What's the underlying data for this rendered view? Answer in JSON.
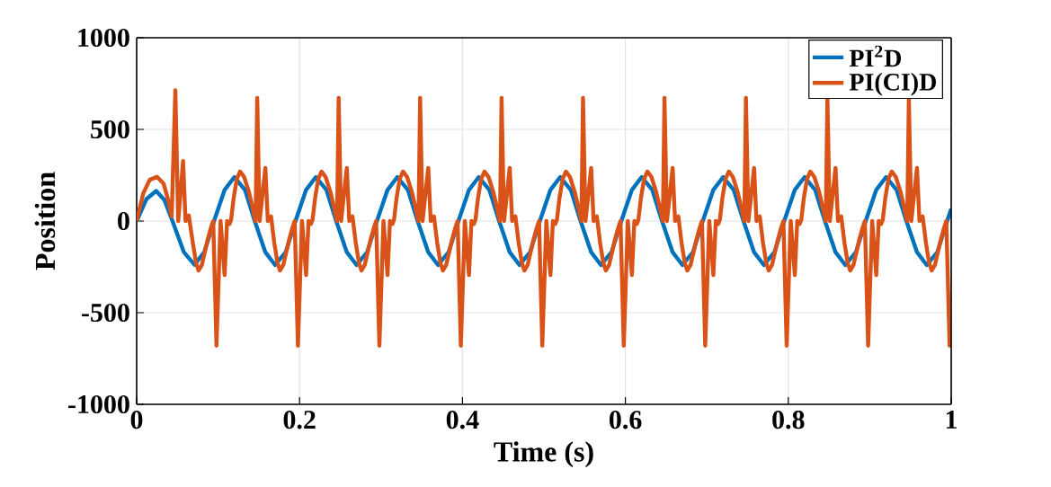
{
  "chart_data": {
    "type": "line",
    "xlabel": "Time (s)",
    "ylabel": "Position",
    "xlim": [
      0,
      1
    ],
    "ylim": [
      -1000,
      1000
    ],
    "xticks": [
      0,
      0.2,
      0.4,
      0.6,
      0.8,
      1
    ],
    "yticks": [
      -1000,
      -500,
      0,
      500,
      1000
    ],
    "grid": true,
    "legend": "top right",
    "series": [
      {
        "name": "PI$^{2}$D",
        "color": "#0072bd",
        "x": [
          0,
          0.012,
          0.024,
          0.034,
          0.044,
          0.058,
          0.071,
          0.083,
          0.095,
          0.108,
          0.12,
          0.133,
          0.145,
          0.158,
          0.17,
          0.183,
          0.195,
          0.208,
          0.22,
          0.233,
          0.245,
          0.258,
          0.27,
          0.283,
          0.295,
          0.308,
          0.32,
          0.333,
          0.345,
          0.358,
          0.37,
          0.383,
          0.395,
          0.408,
          0.42,
          0.433,
          0.445,
          0.458,
          0.47,
          0.483,
          0.495,
          0.508,
          0.52,
          0.533,
          0.545,
          0.558,
          0.57,
          0.583,
          0.595,
          0.608,
          0.62,
          0.633,
          0.645,
          0.658,
          0.67,
          0.683,
          0.695,
          0.708,
          0.72,
          0.733,
          0.745,
          0.758,
          0.77,
          0.783,
          0.795,
          0.808,
          0.82,
          0.833,
          0.845,
          0.858,
          0.87,
          0.883,
          0.895,
          0.908,
          0.92,
          0.933,
          0.945,
          0.958,
          0.97,
          0.983,
          0.995,
          1
        ],
        "values": [
          0,
          120,
          164,
          115,
          0,
          -170,
          -238,
          -170,
          0,
          170,
          240,
          170,
          0,
          -170,
          -240,
          -170,
          0,
          170,
          240,
          170,
          0,
          -170,
          -240,
          -170,
          0,
          170,
          240,
          170,
          0,
          -170,
          -240,
          -170,
          0,
          170,
          240,
          170,
          0,
          -170,
          -240,
          -170,
          0,
          170,
          240,
          170,
          0,
          -170,
          -240,
          -170,
          0,
          170,
          240,
          170,
          0,
          -170,
          -240,
          -170,
          0,
          170,
          240,
          170,
          0,
          -170,
          -240,
          -170,
          0,
          170,
          240,
          170,
          0,
          -170,
          -240,
          -170,
          0,
          170,
          240,
          170,
          0,
          -170,
          -240,
          -170,
          0,
          67
        ]
      },
      {
        "name": "PI(CI)D",
        "color": "#d95319",
        "x": [
          0,
          0.008,
          0.016,
          0.025,
          0.033,
          0.039,
          0.043,
          0.0475,
          0.051,
          0.057,
          0.06,
          0.064,
          0.069,
          0.073,
          0.076,
          0.08,
          0.087,
          0.091,
          0.094,
          0.098,
          0.103,
          0.108,
          0.111,
          0.114,
          0.116,
          0.119,
          0.123,
          0.127,
          0.132,
          0.138,
          0.142,
          0.146,
          0.148,
          0.151,
          0.158,
          0.161,
          0.165,
          0.169,
          0.173,
          0.176,
          0.18,
          0.187,
          0.191,
          0.194,
          0.198,
          0.203,
          0.208,
          0.211,
          0.214,
          0.216,
          0.219,
          0.223,
          0.227,
          0.232,
          0.238,
          0.242,
          0.246,
          0.248,
          0.251,
          0.258,
          0.261,
          0.265,
          0.269,
          0.273,
          0.276,
          0.28,
          0.287,
          0.291,
          0.294,
          0.298,
          0.303,
          0.308,
          0.311,
          0.314,
          0.316,
          0.319,
          0.323,
          0.327,
          0.332,
          0.338,
          0.342,
          0.346,
          0.348,
          0.351,
          0.358,
          0.361,
          0.365,
          0.369,
          0.373,
          0.376,
          0.38,
          0.387,
          0.391,
          0.394,
          0.398,
          0.403,
          0.408,
          0.411,
          0.414,
          0.416,
          0.419,
          0.423,
          0.427,
          0.432,
          0.438,
          0.442,
          0.446,
          0.448,
          0.451,
          0.458,
          0.461,
          0.465,
          0.469,
          0.473,
          0.476,
          0.48,
          0.487,
          0.491,
          0.494,
          0.498,
          0.503,
          0.508,
          0.511,
          0.514,
          0.516,
          0.519,
          0.523,
          0.527,
          0.532,
          0.538,
          0.542,
          0.546,
          0.548,
          0.551,
          0.558,
          0.561,
          0.565,
          0.569,
          0.573,
          0.576,
          0.58,
          0.587,
          0.591,
          0.594,
          0.598,
          0.603,
          0.608,
          0.611,
          0.614,
          0.616,
          0.619,
          0.623,
          0.627,
          0.632,
          0.638,
          0.642,
          0.646,
          0.648,
          0.651,
          0.658,
          0.661,
          0.665,
          0.669,
          0.673,
          0.676,
          0.68,
          0.687,
          0.691,
          0.694,
          0.698,
          0.703,
          0.708,
          0.711,
          0.714,
          0.716,
          0.719,
          0.723,
          0.727,
          0.732,
          0.738,
          0.742,
          0.746,
          0.748,
          0.751,
          0.758,
          0.761,
          0.765,
          0.769,
          0.773,
          0.776,
          0.78,
          0.787,
          0.791,
          0.794,
          0.798,
          0.803,
          0.808,
          0.811,
          0.814,
          0.816,
          0.819,
          0.823,
          0.827,
          0.832,
          0.838,
          0.842,
          0.846,
          0.848,
          0.851,
          0.858,
          0.861,
          0.865,
          0.869,
          0.873,
          0.876,
          0.88,
          0.887,
          0.891,
          0.894,
          0.898,
          0.903,
          0.908,
          0.911,
          0.914,
          0.916,
          0.919,
          0.923,
          0.927,
          0.932,
          0.938,
          0.942,
          0.946,
          0.948,
          0.951,
          0.958,
          0.961,
          0.965,
          0.969,
          0.973,
          0.976,
          0.98,
          0.987,
          0.991,
          0.994,
          0.998,
          1
        ],
        "values": [
          0,
          150,
          225,
          241,
          205,
          110,
          25,
          713,
          0,
          328,
          0,
          30,
          -120,
          -230,
          -270,
          -240,
          -105,
          -40,
          0,
          -680,
          0,
          -295,
          0,
          -16,
          8,
          123,
          230,
          270,
          240,
          156,
          80,
          0,
          672,
          0,
          290,
          0,
          25,
          -120,
          -230,
          -270,
          -240,
          -105,
          -40,
          0,
          -680,
          0,
          -295,
          0,
          -16,
          8,
          123,
          230,
          270,
          240,
          156,
          80,
          0,
          672,
          0,
          290,
          0,
          25,
          -120,
          -230,
          -270,
          -240,
          -105,
          -40,
          0,
          -680,
          0,
          -295,
          0,
          -16,
          8,
          123,
          230,
          270,
          240,
          156,
          80,
          0,
          672,
          0,
          290,
          0,
          25,
          -120,
          -230,
          -270,
          -240,
          -105,
          -40,
          0,
          -680,
          0,
          -295,
          0,
          -16,
          8,
          123,
          230,
          270,
          240,
          156,
          80,
          0,
          672,
          0,
          290,
          0,
          25,
          -120,
          -230,
          -270,
          -240,
          -105,
          -40,
          0,
          -680,
          0,
          -295,
          0,
          -16,
          8,
          123,
          230,
          270,
          240,
          156,
          80,
          0,
          672,
          0,
          290,
          0,
          25,
          -120,
          -230,
          -270,
          -240,
          -105,
          -40,
          0,
          -680,
          0,
          -295,
          0,
          -16,
          8,
          123,
          230,
          270,
          240,
          156,
          80,
          0,
          672,
          0,
          290,
          0,
          25,
          -120,
          -230,
          -270,
          -240,
          -105,
          -40,
          0,
          -680,
          0,
          -295,
          0,
          -16,
          8,
          123,
          230,
          270,
          240,
          156,
          80,
          0,
          672,
          0,
          290,
          0,
          25,
          -120,
          -230,
          -270,
          -240,
          -105,
          -40,
          0,
          -680,
          0,
          -295,
          0,
          -16,
          8,
          123,
          230,
          270,
          240,
          156,
          80,
          0,
          672,
          0,
          290,
          0,
          25,
          -120,
          -230,
          -270,
          -240,
          -105,
          -40,
          0,
          -680,
          0,
          -295,
          0,
          -16,
          8,
          123,
          230,
          270,
          240,
          156,
          80,
          0,
          672,
          0,
          290,
          0,
          25,
          -120,
          -230,
          -270,
          -240,
          -105,
          -40,
          0,
          -680,
          -600
        ]
      }
    ]
  }
}
